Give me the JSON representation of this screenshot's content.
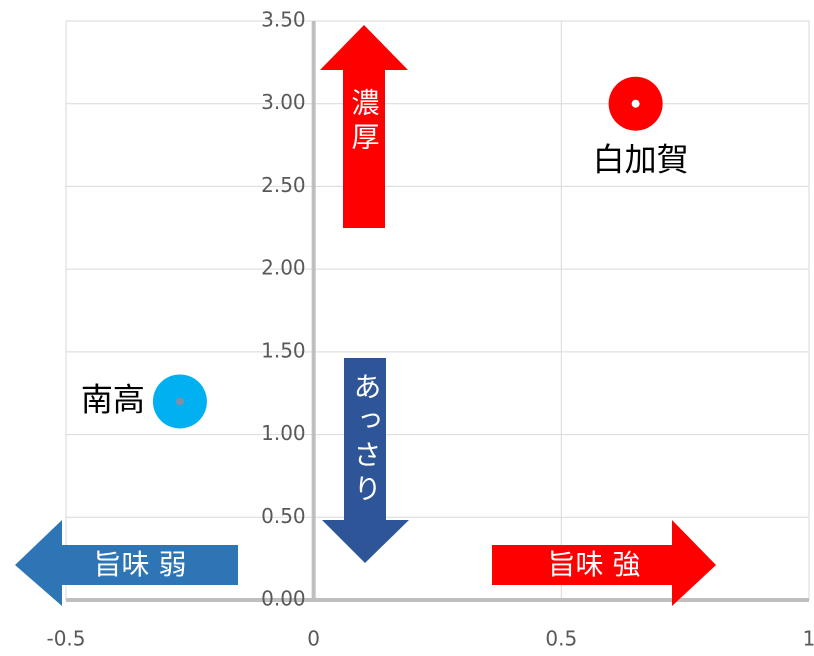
{
  "chart_data": {
    "type": "scatter",
    "series": [
      {
        "name": "白加賀",
        "color": "#ff0000",
        "x": [
          0.65
        ],
        "values": [
          3.0
        ]
      },
      {
        "name": "南高",
        "color": "#00b0f0",
        "x": [
          -0.27
        ],
        "values": [
          1.2
        ]
      }
    ],
    "xlim": [
      -0.5,
      1
    ],
    "xticks": [
      -0.5,
      0,
      0.5,
      1
    ],
    "ylim": [
      0,
      3.5
    ],
    "yticks": [
      {
        "value": 0,
        "label": "0.00"
      },
      {
        "value": 0.5,
        "label": "0.50"
      },
      {
        "value": 1,
        "label": "1.00"
      },
      {
        "value": 1.5,
        "label": "1.50"
      },
      {
        "value": 2,
        "label": "2.00"
      },
      {
        "value": 2.5,
        "label": "2.50"
      },
      {
        "value": 3,
        "label": "3.00"
      },
      {
        "value": 3.5,
        "label": "3.50"
      }
    ],
    "grid": true,
    "annotations": [
      "濃厚",
      "あっさり",
      "旨味 弱",
      "旨味 強"
    ]
  }
}
